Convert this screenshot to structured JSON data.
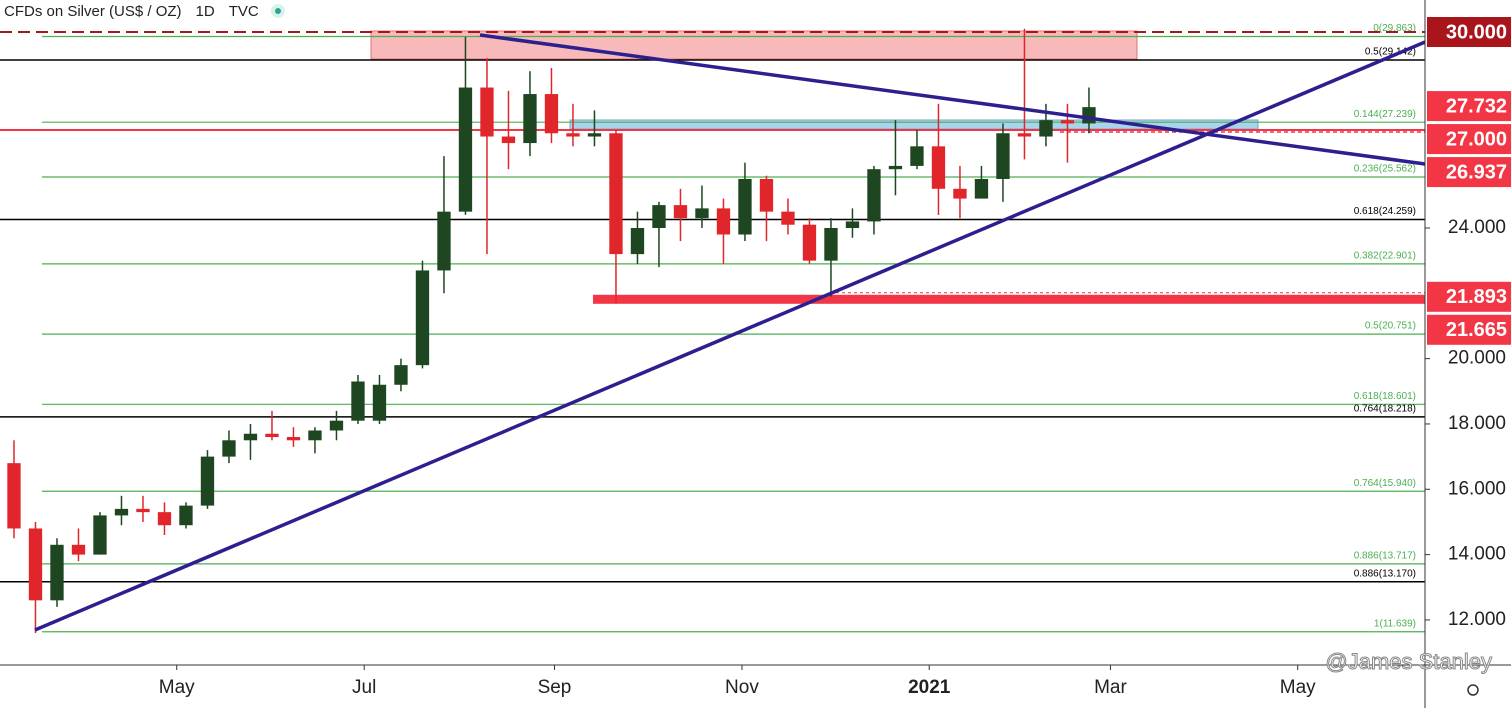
{
  "chart_data": {
    "type": "candlestick",
    "title": "CFDs on Silver (US$ / OZ)",
    "interval": "1D",
    "source": "TVC",
    "watermark": "@James Stanley",
    "up_color": "#1e4620",
    "down_color": "#e0262b",
    "open": [
      16.8,
      14.8,
      12.6,
      14.3,
      14.0,
      15.2,
      15.4,
      15.3,
      14.9,
      15.5,
      17.0,
      17.5,
      17.7,
      17.6,
      17.5,
      17.8,
      18.1,
      18.1,
      19.2,
      19.8,
      22.7,
      24.5,
      28.3,
      26.8,
      26.6,
      28.1,
      26.9,
      26.8,
      26.9,
      23.2,
      24.0,
      24.7,
      24.3,
      24.6,
      23.8,
      25.5,
      24.5,
      24.1,
      23.0,
      24.0,
      24.2,
      25.8,
      25.9,
      26.5,
      25.2,
      24.9,
      25.5,
      26.9,
      26.8,
      27.3,
      27.2
    ],
    "high": [
      17.5,
      15.0,
      14.5,
      14.8,
      15.3,
      15.8,
      15.8,
      15.6,
      15.6,
      17.2,
      17.8,
      18.0,
      18.4,
      17.9,
      17.9,
      18.4,
      19.5,
      19.5,
      20.0,
      23.0,
      26.2,
      29.85,
      29.2,
      28.2,
      28.8,
      28.9,
      27.8,
      27.6,
      27.0,
      24.5,
      24.8,
      25.2,
      25.3,
      24.9,
      26.0,
      25.6,
      24.9,
      24.3,
      24.3,
      24.6,
      25.9,
      27.3,
      27.0,
      27.8,
      25.9,
      25.9,
      27.2,
      30.1,
      27.8,
      27.8,
      28.3
    ],
    "low": [
      14.5,
      11.6,
      12.4,
      13.8,
      14.0,
      14.9,
      15.0,
      14.6,
      14.8,
      15.4,
      16.8,
      16.9,
      17.5,
      17.3,
      17.1,
      17.5,
      18.0,
      18.0,
      19.0,
      19.7,
      22.0,
      24.4,
      23.2,
      25.8,
      26.2,
      26.6,
      26.5,
      26.5,
      21.7,
      22.9,
      22.8,
      23.6,
      24.0,
      22.9,
      23.6,
      23.6,
      23.8,
      22.9,
      21.9,
      23.7,
      23.8,
      25.0,
      25.8,
      24.4,
      24.3,
      24.9,
      24.8,
      26.1,
      26.5,
      26.0,
      26.9
    ],
    "close": [
      14.8,
      12.6,
      14.3,
      14.0,
      15.2,
      15.4,
      15.3,
      14.9,
      15.5,
      17.0,
      17.5,
      17.7,
      17.6,
      17.5,
      17.8,
      18.1,
      19.3,
      19.2,
      19.8,
      22.7,
      24.5,
      28.3,
      26.8,
      26.6,
      28.1,
      26.9,
      26.8,
      26.9,
      23.2,
      24.0,
      24.7,
      24.3,
      24.6,
      23.8,
      25.5,
      24.5,
      24.1,
      23.0,
      24.0,
      24.2,
      25.8,
      25.9,
      26.5,
      25.2,
      24.9,
      25.5,
      26.9,
      26.8,
      27.3,
      27.2,
      27.7
    ],
    "xlim": [
      -0.65,
      65.63
    ],
    "xticks": [
      {
        "value": 7.57,
        "label": "May"
      },
      {
        "value": 16.29,
        "label": "Jul"
      },
      {
        "value": 25.14,
        "label": "Sep"
      },
      {
        "value": 33.86,
        "label": "Nov"
      },
      {
        "value": 42.57,
        "label": "2021"
      },
      {
        "value": 51.0,
        "label": "Mar"
      },
      {
        "value": 59.71,
        "label": "May"
      }
    ],
    "ylim": [
      10.62,
      30.98
    ],
    "yticks": [
      {
        "value": 24,
        "label": "24.000"
      },
      {
        "value": 20,
        "label": "20.000"
      },
      {
        "value": 18,
        "label": "18.000"
      },
      {
        "value": 16,
        "label": "16.000"
      },
      {
        "value": 14,
        "label": "14.000"
      },
      {
        "value": 12,
        "label": "12.000"
      }
    ],
    "price_badges": [
      {
        "value": 30,
        "label": "30.000",
        "color": "#a8161b"
      },
      {
        "value": 27.732,
        "label": "27.732",
        "color": "#f23645"
      },
      {
        "value": 27,
        "label": "27.000",
        "color": "#f23645"
      },
      {
        "value": 26.937,
        "label": "26.937",
        "color": "#f23645"
      },
      {
        "value": 21.893,
        "label": "21.893",
        "color": "#f23645"
      },
      {
        "value": 21.665,
        "label": "21.665",
        "color": "#f23645"
      }
    ],
    "fib_levels": [
      {
        "value": 29.863,
        "label": "0(29.863)",
        "color": "#4caf50",
        "extend_left": false
      },
      {
        "value": 29.142,
        "label": "0.5(29.142)",
        "color": "#000000",
        "extend_left": true
      },
      {
        "value": 27.239,
        "label": "0.144(27.239)",
        "color": "#4caf50",
        "extend_left": false
      },
      {
        "value": 25.562,
        "label": "0.236(25.562)",
        "color": "#4caf50",
        "extend_left": false
      },
      {
        "value": 24.259,
        "label": "0.618(24.259)",
        "color": "#000000",
        "extend_left": true
      },
      {
        "value": 22.901,
        "label": "0.382(22.901)",
        "color": "#4caf50",
        "extend_left": false
      },
      {
        "value": 20.751,
        "label": "0.5(20.751)",
        "color": "#4caf50",
        "extend_left": false
      },
      {
        "value": 18.601,
        "label": "0.618(18.601)",
        "color": "#4caf50",
        "extend_left": false
      },
      {
        "value": 18.218,
        "label": "0.764(18.218)",
        "color": "#000000",
        "extend_left": true
      },
      {
        "value": 15.94,
        "label": "0.764(15.940)",
        "color": "#4caf50",
        "extend_left": false
      },
      {
        "value": 13.717,
        "label": "0.886(13.717)",
        "color": "#4caf50",
        "extend_left": false
      },
      {
        "value": 13.17,
        "label": "0.886(13.170)",
        "color": "#000000",
        "extend_left": true
      },
      {
        "value": 11.639,
        "label": "1(11.639)",
        "color": "#4caf50",
        "extend_left": false
      }
    ]
  }
}
